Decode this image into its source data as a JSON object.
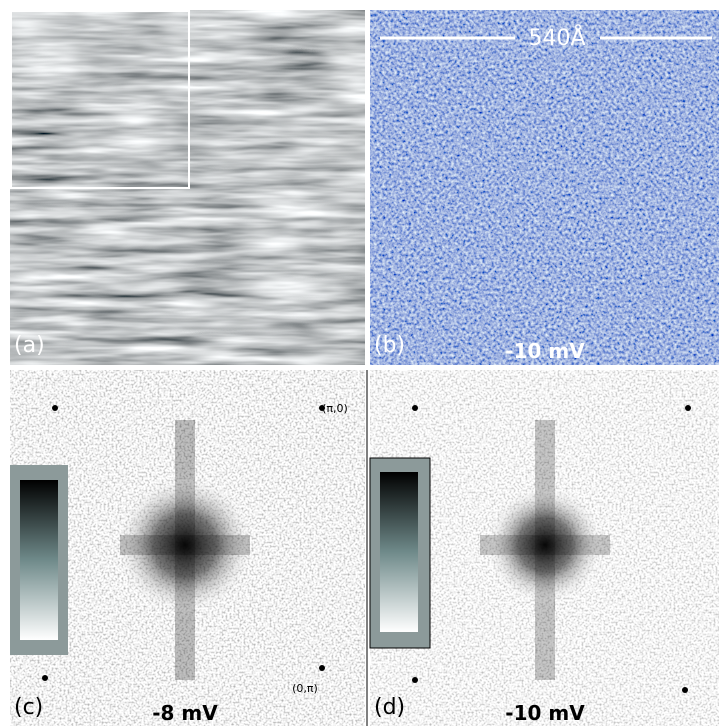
{
  "panels": [
    {
      "label": "(a)"
    },
    {
      "label": "(b)",
      "scale": "540Å",
      "bias": "-10 mV"
    },
    {
      "label": "(c)",
      "bias": "-8 mV",
      "corner_top": "(π,0)",
      "corner_bottom": "(0,π)"
    },
    {
      "label": "(d)",
      "bias": "-10 mV"
    }
  ]
}
